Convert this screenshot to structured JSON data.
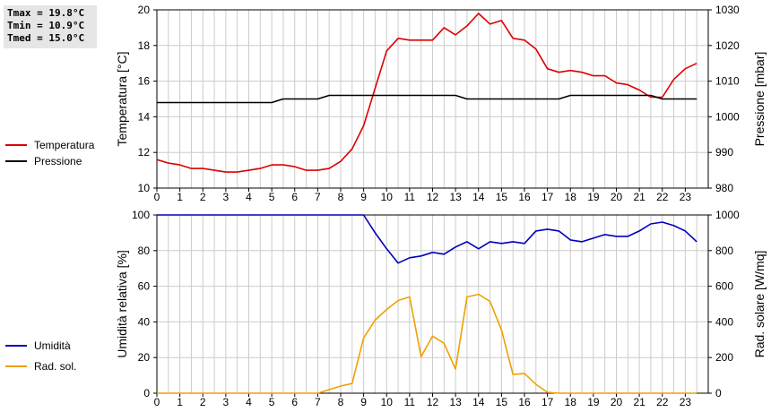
{
  "stats": {
    "tmax": "Tmax = 19.8°C",
    "tmin": "Tmin = 10.9°C",
    "tmed": "Tmed = 15.0°C"
  },
  "colors": {
    "temperature": "#dd0000",
    "pressure": "#000000",
    "humidity": "#0000bb",
    "solar": "#f0a000",
    "grid": "#cccccc"
  },
  "chart_data": [
    {
      "type": "line",
      "x": [
        0,
        0.5,
        1,
        1.5,
        2,
        2.5,
        3,
        3.5,
        4,
        4.5,
        5,
        5.5,
        6,
        6.5,
        7,
        7.5,
        8,
        8.5,
        9,
        9.5,
        10,
        10.5,
        11,
        11.5,
        12,
        12.5,
        13,
        13.5,
        14,
        14.5,
        15,
        15.5,
        16,
        16.5,
        17,
        17.5,
        18,
        18.5,
        19,
        19.5,
        20,
        20.5,
        21,
        21.5,
        22,
        22.5,
        23,
        23.5
      ],
      "xticks": [
        "0",
        "1",
        "2",
        "3",
        "4",
        "5",
        "6",
        "7",
        "8",
        "9",
        "10",
        "11",
        "12",
        "13",
        "14",
        "15",
        "16",
        "17",
        "18",
        "19",
        "20",
        "21",
        "22",
        "23"
      ],
      "xlim": [
        0,
        24
      ],
      "ylabel": "Temperatura [°C]",
      "ylim": [
        10,
        20
      ],
      "yticks": [
        "10",
        "12",
        "14",
        "16",
        "18",
        "20"
      ],
      "y2label": "Pressione [mbar]",
      "y2lim": [
        980,
        1030
      ],
      "y2ticks": [
        "980",
        "990",
        "1000",
        "1010",
        "1020",
        "1030"
      ],
      "grid": true,
      "legend": "left",
      "series": [
        {
          "name": "Temperatura",
          "axis": "left",
          "values": [
            11.6,
            11.4,
            11.3,
            11.1,
            11.1,
            11.0,
            10.9,
            10.9,
            11.0,
            11.1,
            11.3,
            11.3,
            11.2,
            11.0,
            11.0,
            11.1,
            11.5,
            12.2,
            13.5,
            15.6,
            17.7,
            18.4,
            18.3,
            18.3,
            18.3,
            19.0,
            18.6,
            19.1,
            19.8,
            19.2,
            19.4,
            18.4,
            18.3,
            17.8,
            16.7,
            16.5,
            16.6,
            16.5,
            16.3,
            16.3,
            15.9,
            15.8,
            15.5,
            15.1,
            15.1,
            16.1,
            16.7,
            17.0
          ]
        },
        {
          "name": "Pressione",
          "axis": "right",
          "values": [
            1004,
            1004,
            1004,
            1004,
            1004,
            1004,
            1004,
            1004,
            1004,
            1004,
            1004,
            1005,
            1005,
            1005,
            1005,
            1006,
            1006,
            1006,
            1006,
            1006,
            1006,
            1006,
            1006,
            1006,
            1006,
            1006,
            1006,
            1005,
            1005,
            1005,
            1005,
            1005,
            1005,
            1005,
            1005,
            1005,
            1006,
            1006,
            1006,
            1006,
            1006,
            1006,
            1006,
            1006,
            1005,
            1005,
            1005,
            1005
          ]
        }
      ]
    },
    {
      "type": "line",
      "x": [
        0,
        0.5,
        1,
        1.5,
        2,
        2.5,
        3,
        3.5,
        4,
        4.5,
        5,
        5.5,
        6,
        6.5,
        7,
        7.5,
        8,
        8.5,
        9,
        9.5,
        10,
        10.5,
        11,
        11.5,
        12,
        12.5,
        13,
        13.5,
        14,
        14.5,
        15,
        15.5,
        16,
        16.5,
        17,
        17.5,
        18,
        18.5,
        19,
        19.5,
        20,
        20.5,
        21,
        21.5,
        22,
        22.5,
        23,
        23.5
      ],
      "xticks": [
        "0",
        "1",
        "2",
        "3",
        "4",
        "5",
        "6",
        "7",
        "8",
        "9",
        "10",
        "11",
        "12",
        "13",
        "14",
        "15",
        "16",
        "17",
        "18",
        "19",
        "20",
        "21",
        "22",
        "23"
      ],
      "xlim": [
        0,
        24
      ],
      "ylabel": "Umidità relativa [%]",
      "ylim": [
        0,
        100
      ],
      "yticks": [
        "0",
        "20",
        "40",
        "60",
        "80",
        "100"
      ],
      "y2label": "Rad. solare [W/mq]",
      "y2lim": [
        0,
        1000
      ],
      "y2ticks": [
        "0",
        "200",
        "400",
        "600",
        "800",
        "1000"
      ],
      "grid": true,
      "legend": "left",
      "series": [
        {
          "name": "Umidità",
          "axis": "left",
          "values": [
            100,
            100,
            100,
            100,
            100,
            100,
            100,
            100,
            100,
            100,
            100,
            100,
            100,
            100,
            100,
            100,
            100,
            100,
            100,
            90,
            81,
            73,
            76,
            77,
            79,
            78,
            82,
            85,
            81,
            85,
            84,
            85,
            84,
            91,
            92,
            91,
            86,
            85,
            87,
            89,
            88,
            88,
            91,
            95,
            96,
            94,
            91,
            85
          ]
        },
        {
          "name": "Rad. sol.",
          "axis": "right",
          "values": [
            0,
            0,
            0,
            0,
            0,
            0,
            0,
            0,
            0,
            0,
            0,
            0,
            0,
            0,
            0,
            20,
            40,
            55,
            310,
            410,
            470,
            520,
            540,
            205,
            320,
            280,
            135,
            540,
            555,
            515,
            355,
            105,
            110,
            50,
            5,
            0,
            0,
            0,
            0,
            0,
            0,
            0,
            0,
            0,
            0,
            0,
            0,
            0
          ]
        }
      ]
    }
  ]
}
